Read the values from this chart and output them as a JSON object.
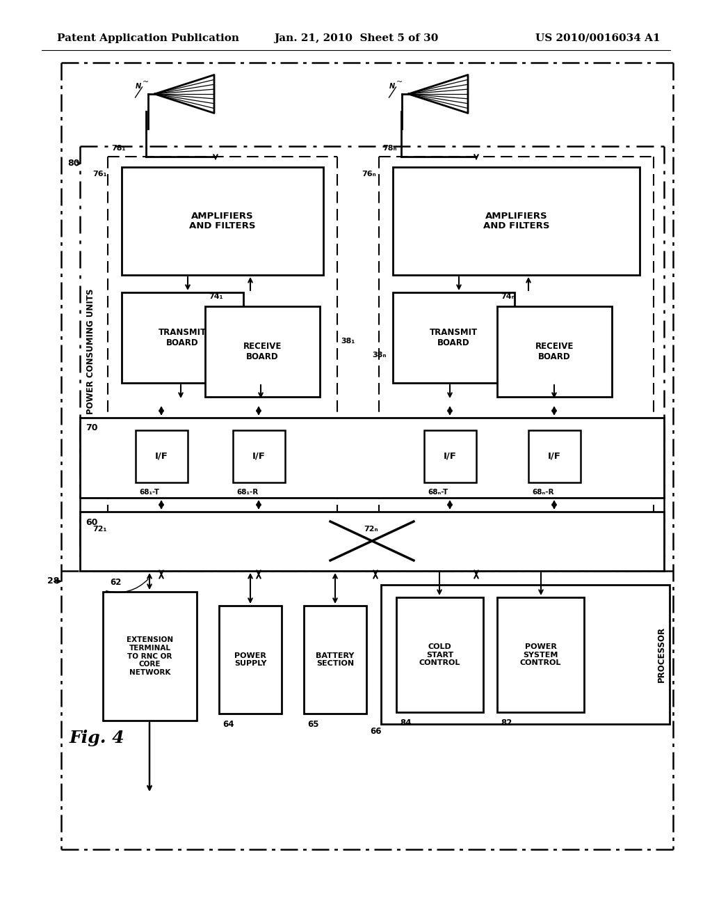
{
  "title_left": "Patent Application Publication",
  "title_center": "Jan. 21, 2010  Sheet 5 of 30",
  "title_right": "US 2010/0016034 A1",
  "background": "#ffffff",
  "header_fontsize": 11,
  "body_font": 8.5,
  "small_font": 7.5,
  "label_font": 8,
  "fig_font": 18,
  "labels": {
    "781": "78₁",
    "78N": "78ₙ",
    "761": "76₁",
    "76N": "76ₙ",
    "721": "72₁",
    "72N": "72ₙ",
    "741": "74₁",
    "74N": "74ₙ",
    "381": "38₁",
    "38N": "38ₙ",
    "681T": "68₁-T",
    "681R": "68₁-R",
    "68NT": "68ₙ-T",
    "68NR": "68ₙ-R",
    "pcu": "POWER CONSUMING UNITS",
    "fig": "Fig. 4"
  }
}
